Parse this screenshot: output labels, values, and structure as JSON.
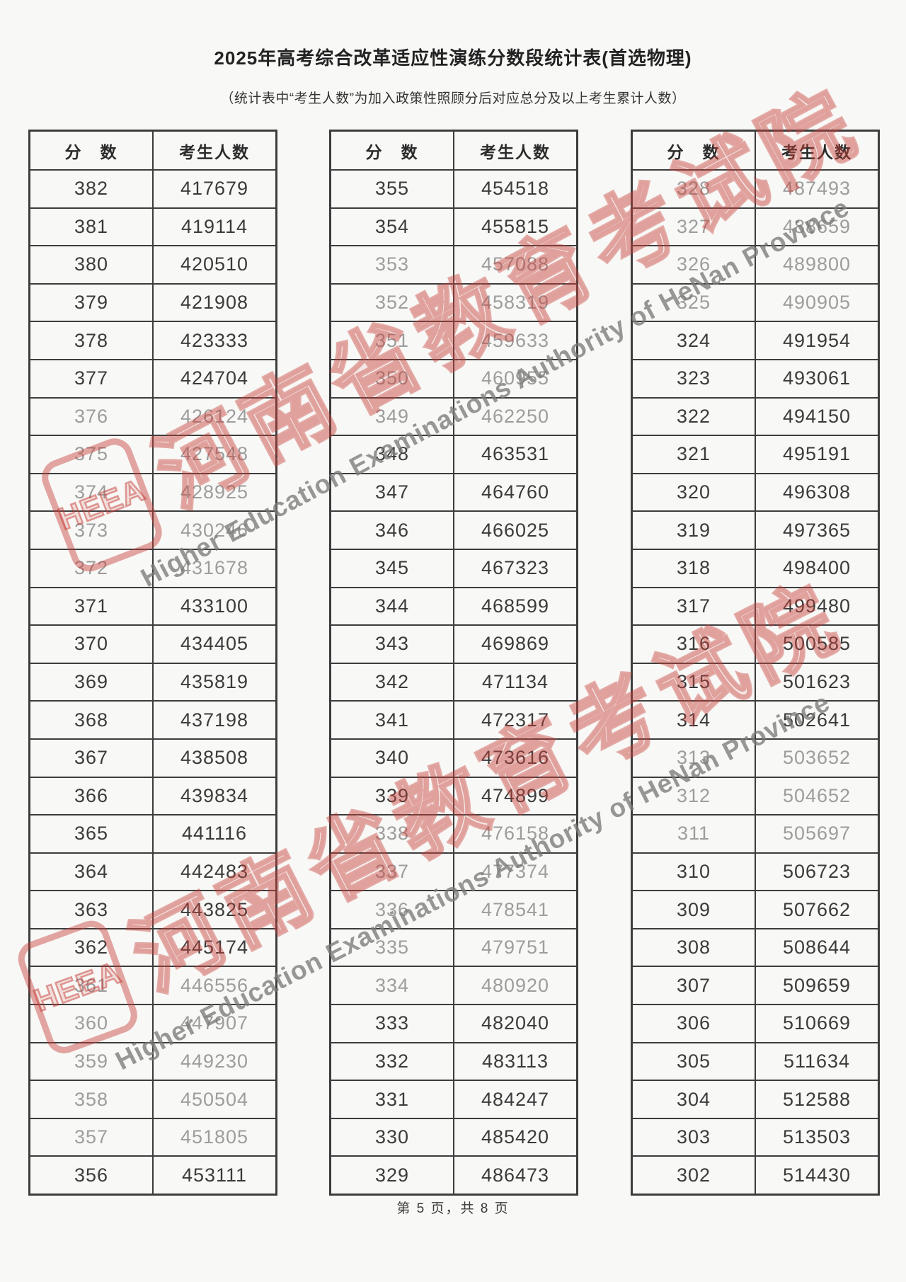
{
  "title": "2025年高考综合改革适应性演练分数段统计表(首选物理)",
  "subtitle": "（统计表中“考生人数”为加入政策性照顾分后对应总分及以上考生累计人数）",
  "footer": "第 5 页，共 8 页",
  "columns": {
    "score": "分　数",
    "count": "考生人数"
  },
  "watermark": {
    "logo": "HEEA",
    "cn": "河南省教育考试院",
    "en": "Higher Education Examinations Authority of HeNan Province",
    "color": "#c63e37"
  },
  "tables": [
    {
      "rows": [
        {
          "score": 382,
          "count": 417679
        },
        {
          "score": 381,
          "count": 419114
        },
        {
          "score": 380,
          "count": 420510
        },
        {
          "score": 379,
          "count": 421908
        },
        {
          "score": 378,
          "count": 423333
        },
        {
          "score": 377,
          "count": 424704
        },
        {
          "score": 376,
          "count": 426124
        },
        {
          "score": 375,
          "count": 427548
        },
        {
          "score": 374,
          "count": 428925
        },
        {
          "score": 373,
          "count": 430246
        },
        {
          "score": 372,
          "count": 431678
        },
        {
          "score": 371,
          "count": 433100
        },
        {
          "score": 370,
          "count": 434405
        },
        {
          "score": 369,
          "count": 435819
        },
        {
          "score": 368,
          "count": 437198
        },
        {
          "score": 367,
          "count": 438508
        },
        {
          "score": 366,
          "count": 439834
        },
        {
          "score": 365,
          "count": 441116
        },
        {
          "score": 364,
          "count": 442483
        },
        {
          "score": 363,
          "count": 443825
        },
        {
          "score": 362,
          "count": 445174
        },
        {
          "score": 361,
          "count": 446556
        },
        {
          "score": 360,
          "count": 447907
        },
        {
          "score": 359,
          "count": 449230
        },
        {
          "score": 358,
          "count": 450504
        },
        {
          "score": 357,
          "count": 451805
        },
        {
          "score": 356,
          "count": 453111
        }
      ]
    },
    {
      "rows": [
        {
          "score": 355,
          "count": 454518
        },
        {
          "score": 354,
          "count": 455815
        },
        {
          "score": 353,
          "count": 457088
        },
        {
          "score": 352,
          "count": 458319
        },
        {
          "score": 351,
          "count": 459633
        },
        {
          "score": 350,
          "count": 460955
        },
        {
          "score": 349,
          "count": 462250
        },
        {
          "score": 348,
          "count": 463531
        },
        {
          "score": 347,
          "count": 464760
        },
        {
          "score": 346,
          "count": 466025
        },
        {
          "score": 345,
          "count": 467323
        },
        {
          "score": 344,
          "count": 468599
        },
        {
          "score": 343,
          "count": 469869
        },
        {
          "score": 342,
          "count": 471134
        },
        {
          "score": 341,
          "count": 472317
        },
        {
          "score": 340,
          "count": 473616
        },
        {
          "score": 339,
          "count": 474899
        },
        {
          "score": 338,
          "count": 476158
        },
        {
          "score": 337,
          "count": 477374
        },
        {
          "score": 336,
          "count": 478541
        },
        {
          "score": 335,
          "count": 479751
        },
        {
          "score": 334,
          "count": 480920
        },
        {
          "score": 333,
          "count": 482040
        },
        {
          "score": 332,
          "count": 483113
        },
        {
          "score": 331,
          "count": 484247
        },
        {
          "score": 330,
          "count": 485420
        },
        {
          "score": 329,
          "count": 486473
        }
      ]
    },
    {
      "rows": [
        {
          "score": 328,
          "count": 487493
        },
        {
          "score": 327,
          "count": 488659
        },
        {
          "score": 326,
          "count": 489800
        },
        {
          "score": 325,
          "count": 490905
        },
        {
          "score": 324,
          "count": 491954
        },
        {
          "score": 323,
          "count": 493061
        },
        {
          "score": 322,
          "count": 494150
        },
        {
          "score": 321,
          "count": 495191
        },
        {
          "score": 320,
          "count": 496308
        },
        {
          "score": 319,
          "count": 497365
        },
        {
          "score": 318,
          "count": 498400
        },
        {
          "score": 317,
          "count": 499480
        },
        {
          "score": 316,
          "count": 500585
        },
        {
          "score": 315,
          "count": 501623
        },
        {
          "score": 314,
          "count": 502641
        },
        {
          "score": 313,
          "count": 503652
        },
        {
          "score": 312,
          "count": 504652
        },
        {
          "score": 311,
          "count": 505697
        },
        {
          "score": 310,
          "count": 506723
        },
        {
          "score": 309,
          "count": 507662
        },
        {
          "score": 308,
          "count": 508644
        },
        {
          "score": 307,
          "count": 509659
        },
        {
          "score": 306,
          "count": 510669
        },
        {
          "score": 305,
          "count": 511634
        },
        {
          "score": 304,
          "count": 512588
        },
        {
          "score": 303,
          "count": 513503
        },
        {
          "score": 302,
          "count": 514430
        }
      ]
    }
  ],
  "dim_scores": [
    376,
    375,
    374,
    373,
    372,
    361,
    360,
    359,
    358,
    357,
    353,
    352,
    351,
    350,
    349,
    338,
    337,
    336,
    335,
    334,
    328,
    327,
    326,
    325,
    313,
    312,
    311
  ]
}
